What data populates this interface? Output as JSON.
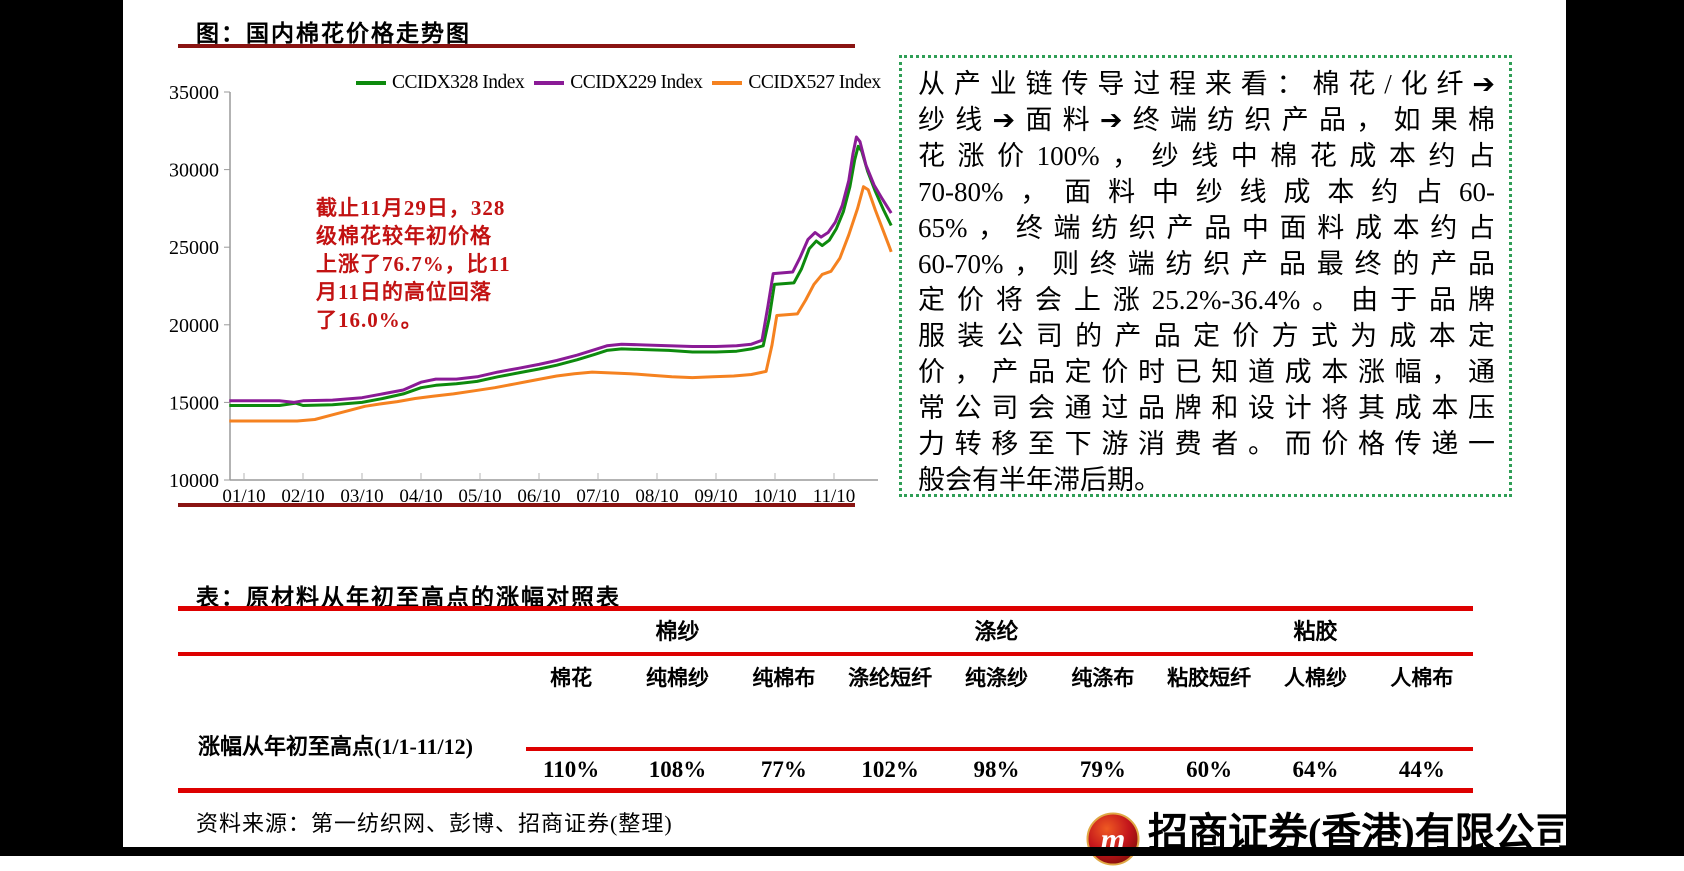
{
  "chart_section": {
    "title": "图：国内棉花价格走势图",
    "rule_color": "#8a1412",
    "annotation_color": "#c21212",
    "annotation_lines": [
      "截止11月29日，328",
      "级棉花较年初价格",
      "上涨了76.7%，比11",
      "月11日的高位回落",
      "了16.0%。"
    ]
  },
  "chart_data": {
    "type": "line",
    "title": "国内棉花价格走势图",
    "xlabel": "",
    "ylabel": "",
    "ylim": [
      10000,
      35000
    ],
    "yticks": [
      10000,
      15000,
      20000,
      25000,
      30000,
      35000
    ],
    "xticklabels": [
      "01/10",
      "02/10",
      "03/10",
      "04/10",
      "05/10",
      "06/10",
      "07/10",
      "08/10",
      "09/10",
      "10/10",
      "11/10"
    ],
    "x_unit": "months, 0 = 01/10 tick",
    "grid": false,
    "legend_position": "top-center",
    "axis_color": "#9a9a9a",
    "series": [
      {
        "name": "CCIDX328 Index",
        "color": "#0d8a0d",
        "points": [
          [
            -0.25,
            14800
          ],
          [
            0.6,
            14800
          ],
          [
            0.88,
            14950
          ],
          [
            1.0,
            14800
          ],
          [
            1.5,
            14850
          ],
          [
            2.0,
            15000
          ],
          [
            2.35,
            15250
          ],
          [
            2.7,
            15550
          ],
          [
            3.0,
            15950
          ],
          [
            3.25,
            16100
          ],
          [
            3.6,
            16200
          ],
          [
            3.95,
            16350
          ],
          [
            4.3,
            16650
          ],
          [
            4.65,
            16900
          ],
          [
            5.0,
            17150
          ],
          [
            5.3,
            17400
          ],
          [
            5.65,
            17750
          ],
          [
            5.95,
            18100
          ],
          [
            6.15,
            18350
          ],
          [
            6.4,
            18450
          ],
          [
            6.8,
            18400
          ],
          [
            7.2,
            18350
          ],
          [
            7.6,
            18250
          ],
          [
            8.0,
            18250
          ],
          [
            8.35,
            18300
          ],
          [
            8.6,
            18450
          ],
          [
            8.8,
            18650
          ],
          [
            8.9,
            20400
          ],
          [
            8.99,
            22600
          ],
          [
            9.32,
            22700
          ],
          [
            9.45,
            23600
          ],
          [
            9.58,
            24900
          ],
          [
            9.7,
            25400
          ],
          [
            9.8,
            25100
          ],
          [
            9.92,
            25450
          ],
          [
            10.04,
            26200
          ],
          [
            10.16,
            27300
          ],
          [
            10.27,
            28900
          ],
          [
            10.35,
            30600
          ],
          [
            10.41,
            31500
          ],
          [
            10.47,
            31200
          ],
          [
            10.57,
            29900
          ],
          [
            10.7,
            28600
          ],
          [
            10.84,
            27400
          ],
          [
            10.97,
            26400
          ]
        ]
      },
      {
        "name": "CCIDX229 Index",
        "color": "#8a1b96",
        "points": [
          [
            -0.25,
            15100
          ],
          [
            0.6,
            15100
          ],
          [
            0.85,
            15000
          ],
          [
            1.0,
            15100
          ],
          [
            1.5,
            15150
          ],
          [
            2.0,
            15300
          ],
          [
            2.35,
            15550
          ],
          [
            2.7,
            15800
          ],
          [
            3.0,
            16300
          ],
          [
            3.25,
            16500
          ],
          [
            3.6,
            16500
          ],
          [
            3.95,
            16650
          ],
          [
            4.3,
            16950
          ],
          [
            4.65,
            17200
          ],
          [
            5.0,
            17450
          ],
          [
            5.3,
            17700
          ],
          [
            5.65,
            18050
          ],
          [
            5.95,
            18400
          ],
          [
            6.15,
            18650
          ],
          [
            6.4,
            18750
          ],
          [
            6.8,
            18700
          ],
          [
            7.2,
            18650
          ],
          [
            7.6,
            18600
          ],
          [
            8.0,
            18600
          ],
          [
            8.35,
            18650
          ],
          [
            8.6,
            18750
          ],
          [
            8.78,
            19000
          ],
          [
            8.88,
            21200
          ],
          [
            8.97,
            23300
          ],
          [
            9.3,
            23400
          ],
          [
            9.42,
            24300
          ],
          [
            9.56,
            25500
          ],
          [
            9.68,
            25950
          ],
          [
            9.78,
            25650
          ],
          [
            9.9,
            25950
          ],
          [
            10.02,
            26600
          ],
          [
            10.14,
            27700
          ],
          [
            10.25,
            29300
          ],
          [
            10.32,
            31000
          ],
          [
            10.38,
            32100
          ],
          [
            10.44,
            31800
          ],
          [
            10.54,
            30300
          ],
          [
            10.68,
            29000
          ],
          [
            10.82,
            28100
          ],
          [
            10.97,
            27200
          ]
        ]
      },
      {
        "name": "CCIDX527 Index",
        "color": "#f58220",
        "points": [
          [
            -0.25,
            13800
          ],
          [
            0.9,
            13800
          ],
          [
            1.2,
            13900
          ],
          [
            1.5,
            14200
          ],
          [
            1.8,
            14500
          ],
          [
            2.05,
            14750
          ],
          [
            2.3,
            14900
          ],
          [
            2.6,
            15050
          ],
          [
            2.9,
            15250
          ],
          [
            3.2,
            15400
          ],
          [
            3.55,
            15550
          ],
          [
            3.9,
            15750
          ],
          [
            4.25,
            15950
          ],
          [
            4.6,
            16200
          ],
          [
            4.95,
            16450
          ],
          [
            5.3,
            16700
          ],
          [
            5.6,
            16850
          ],
          [
            5.9,
            16950
          ],
          [
            6.2,
            16900
          ],
          [
            6.55,
            16850
          ],
          [
            6.9,
            16750
          ],
          [
            7.25,
            16650
          ],
          [
            7.6,
            16600
          ],
          [
            7.95,
            16650
          ],
          [
            8.3,
            16700
          ],
          [
            8.6,
            16800
          ],
          [
            8.85,
            17000
          ],
          [
            8.95,
            18700
          ],
          [
            9.03,
            20600
          ],
          [
            9.38,
            20700
          ],
          [
            9.52,
            21600
          ],
          [
            9.66,
            22600
          ],
          [
            9.8,
            23250
          ],
          [
            9.95,
            23450
          ],
          [
            10.1,
            24300
          ],
          [
            10.25,
            25800
          ],
          [
            10.4,
            27500
          ],
          [
            10.5,
            28900
          ],
          [
            10.58,
            28700
          ],
          [
            10.7,
            27400
          ],
          [
            10.84,
            26000
          ],
          [
            10.94,
            25000
          ],
          [
            10.97,
            24700
          ]
        ]
      }
    ]
  },
  "info_box": {
    "border_color": "#2f9e56",
    "lines": [
      "从产业链传导过程来看：棉花/化纤➔",
      "纱线➔面料➔终端纺织产品，如果棉",
      "花涨价100%，纱线中棉花成本约占",
      "70-80%，面料中纱线成本约占60-",
      "65%，终端纺织产品中面料成本约占",
      "60-70%，则终端纺织产品最终的产品",
      "定价将会上涨25.2%-36.4%。由于品牌",
      "服装公司的产品定价方式为成本定",
      "价，产品定价时已知道成本涨幅，通",
      "常公司会通过品牌和设计将其成本压",
      "力转移至下游消费者。而价格传递一",
      "般会有半年滞后期。"
    ]
  },
  "table_section": {
    "title": "表：原材料从年初至高点的涨幅对照表",
    "rule_color": "#dd0000",
    "row_label": "涨幅从年初至高点(1/1-11/12)",
    "group_headers": [
      "棉纱",
      "涤纶",
      "粘胶"
    ],
    "column_headers": [
      "棉花",
      "纯棉纱",
      "纯棉布",
      "涤纶短纤",
      "纯涤纱",
      "纯涤布",
      "粘胶短纤",
      "人棉纱",
      "人棉布"
    ],
    "values": [
      "110%",
      "108%",
      "77%",
      "102%",
      "98%",
      "79%",
      "60%",
      "64%",
      "44%"
    ]
  },
  "footer": {
    "source_note": "资料来源：第一纺织网、彭博、招商证券(整理)",
    "company_name": "招商证券(香港)有限公司",
    "logo_letter": "m"
  }
}
